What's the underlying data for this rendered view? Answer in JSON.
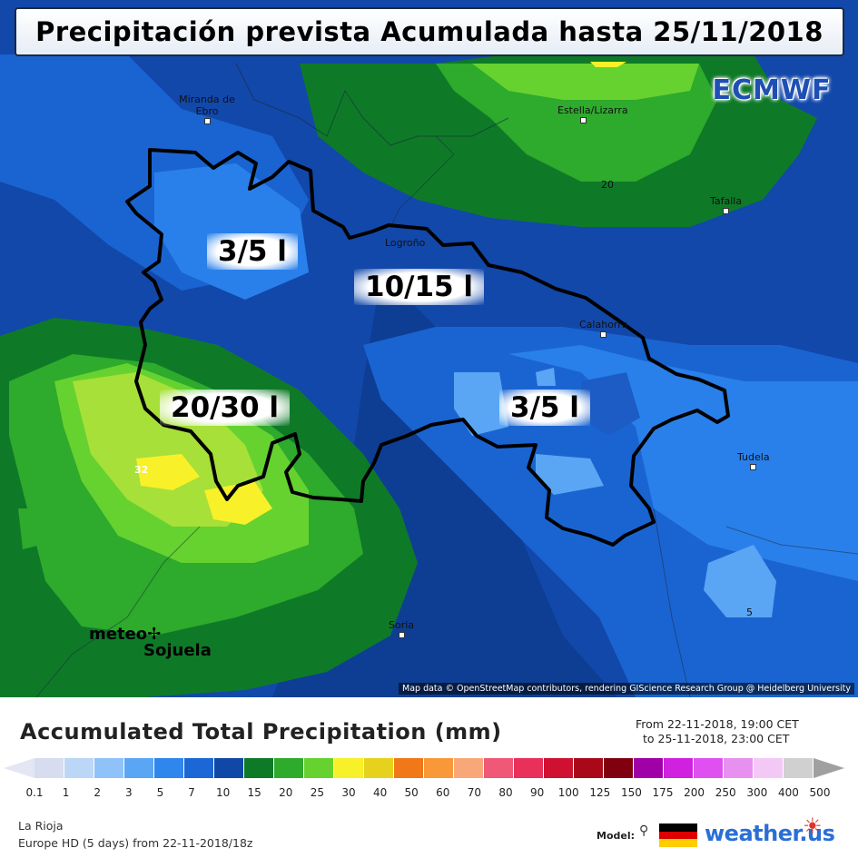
{
  "title": "Precipitación prevista Acumulada hasta 25/11/2018",
  "model_badge": "ECMWF",
  "cities": [
    {
      "name": "Miranda\nde Ebro",
      "label": "Miranda de Ebro"
    },
    {
      "name": "Estella/\nLizarra",
      "label": "Estella/Lizarra"
    },
    {
      "name": "Tafalla",
      "label": "Tafalla"
    },
    {
      "name": "Logroño",
      "label": "Logroño"
    },
    {
      "name": "Calahorra",
      "label": "Calahorra"
    },
    {
      "name": "Tudela",
      "label": "Tudela"
    },
    {
      "name": "Soria",
      "label": "Soria"
    }
  ],
  "amount_labels": [
    "3/5 l",
    "10/15 l",
    "20/30 l",
    "3/5 l"
  ],
  "contour_labels": [
    "20",
    "32",
    "5"
  ],
  "copyright": "Map data © OpenStreetMap contributors, rendering GIScience Research Group @ Heidelberg University",
  "watermark": {
    "line1": "meteo",
    "line2": "Sojuela"
  },
  "legend": {
    "title": "Accumulated Total Precipitation (mm)",
    "period_from": "From 22-11-2018, 19:00 CET",
    "period_to": "to 25-11-2018, 23:00 CET",
    "scale_values": [
      "0.1",
      "1",
      "2",
      "3",
      "5",
      "7",
      "10",
      "15",
      "20",
      "25",
      "30",
      "40",
      "50",
      "60",
      "70",
      "80",
      "90",
      "100",
      "125",
      "150",
      "175",
      "200",
      "250",
      "300",
      "400",
      "500"
    ],
    "scale_colors": [
      "#d8dcf0",
      "#bcd6f8",
      "#8ec2f8",
      "#5aa6f4",
      "#2f86ec",
      "#1c66d6",
      "#1048a8",
      "#0e7a28",
      "#2eaa2c",
      "#66d230",
      "#f8f028",
      "#e6d21c",
      "#f07818",
      "#f89838",
      "#f8a878",
      "#f05878",
      "#e8305a",
      "#d01030",
      "#a80818",
      "#800010",
      "#a000a8",
      "#d020e0",
      "#e050f0",
      "#e890f0",
      "#f4c8f6",
      "#d0d0d0"
    ],
    "low_color": "#e4e6f4",
    "high_color": "#a0a0a0",
    "region": "La Rioja",
    "model_run": "Europe HD (5 days) from 22-11-2018/18z",
    "model_label": "Model:",
    "brand": "weather.us"
  }
}
